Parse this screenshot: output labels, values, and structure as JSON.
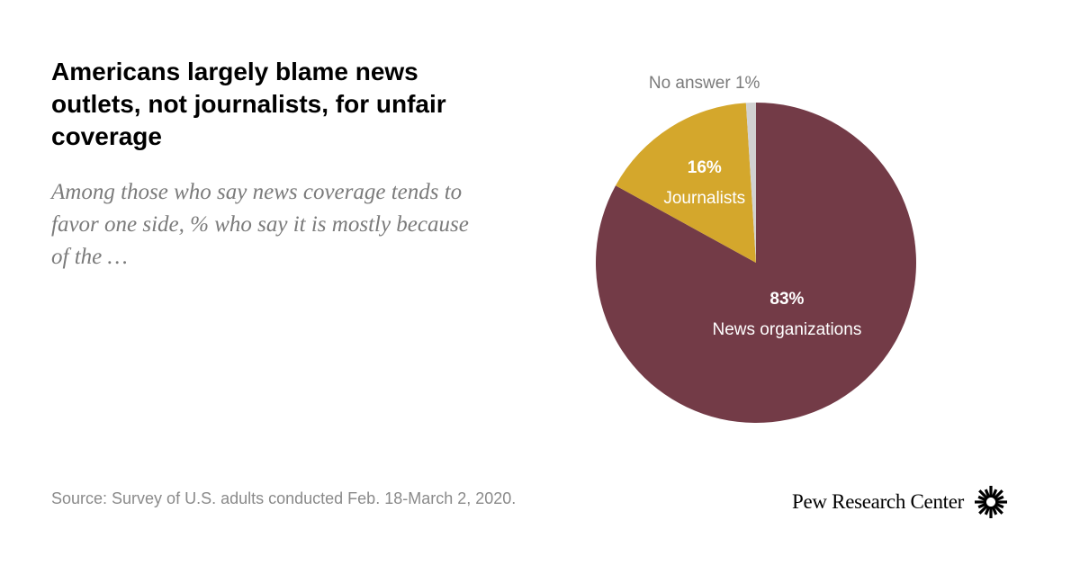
{
  "header": {
    "title": "Americans largely blame news outlets, not journalists, for unfair coverage",
    "subtitle": "Among those who say news coverage tends to favor one side, % who say it is mostly because of the …"
  },
  "footer": {
    "source": "Source: Survey of U.S. adults conducted Feb. 18-March 2, 2020.",
    "brand": "Pew Research Center"
  },
  "colors": {
    "news_organizations": "#733b47",
    "journalists": "#d4a72c",
    "no_answer": "#d1d1d1"
  },
  "chart_data": {
    "type": "pie",
    "slices": [
      {
        "label": "News organizations",
        "value": 83,
        "value_label": "83%",
        "color": "#733b47"
      },
      {
        "label": "Journalists",
        "value": 16,
        "value_label": "16%",
        "color": "#d4a72c"
      },
      {
        "label": "No answer",
        "value": 1,
        "value_label": "1%",
        "color": "#d1d1d1"
      }
    ]
  }
}
